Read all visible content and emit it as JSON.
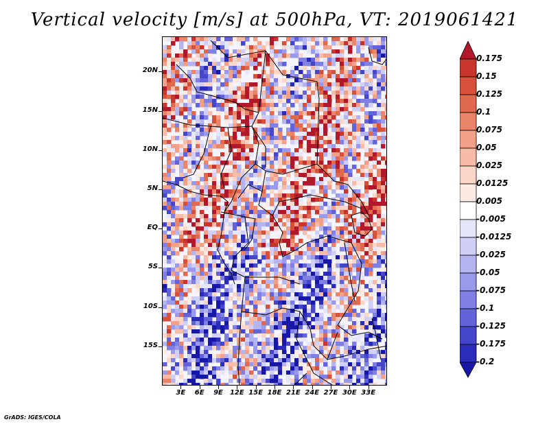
{
  "title": "Vertical velocity [m/s] at 500hPa, VT: 2019061421",
  "map": {
    "field": "Vertical velocity",
    "units": "m/s",
    "level": "500hPa",
    "valid_time": "2019061421",
    "lat_range": [
      -20,
      24.5
    ],
    "lon_range": [
      0,
      36
    ],
    "lat_ticks": [
      {
        "value": 20,
        "label": "20N"
      },
      {
        "value": 15,
        "label": "15N"
      },
      {
        "value": 10,
        "label": "10N"
      },
      {
        "value": 5,
        "label": "5N"
      },
      {
        "value": 0,
        "label": "EQ"
      },
      {
        "value": -5,
        "label": "5S"
      },
      {
        "value": -10,
        "label": "10S"
      },
      {
        "value": -15,
        "label": "15S"
      }
    ],
    "lon_ticks": [
      {
        "value": 3,
        "label": "3E"
      },
      {
        "value": 6,
        "label": "6E"
      },
      {
        "value": 9,
        "label": "9E"
      },
      {
        "value": 12,
        "label": "12E"
      },
      {
        "value": 15,
        "label": "15E"
      },
      {
        "value": 18,
        "label": "18E"
      },
      {
        "value": 21,
        "label": "21E"
      },
      {
        "value": 24,
        "label": "24E"
      },
      {
        "value": 27,
        "label": "27E"
      },
      {
        "value": 30,
        "label": "30E"
      },
      {
        "value": 33,
        "label": "33E"
      }
    ]
  },
  "colorbar": {
    "labels": [
      "0.175",
      "0.15",
      "0.125",
      "0.1",
      "0.075",
      "0.05",
      "0.025",
      "0.0125",
      "0.005",
      "-0.005",
      "-0.0125",
      "-0.025",
      "-0.05",
      "-0.075",
      "-0.1",
      "-0.125",
      "-0.175",
      "-0.2"
    ],
    "colors": [
      "#b2182b",
      "#c7352d",
      "#d6503a",
      "#e06a4f",
      "#ea8569",
      "#f2a088",
      "#f7bba7",
      "#fbd6c8",
      "#fdebe3",
      "#ffffff",
      "#e6e6fb",
      "#cfcff7",
      "#b4b4f1",
      "#9a9aec",
      "#7f7fe4",
      "#6262d9",
      "#4646ca",
      "#2c2cba",
      "#1818a8"
    ]
  },
  "credit": "GrADS: IGES/COLA"
}
